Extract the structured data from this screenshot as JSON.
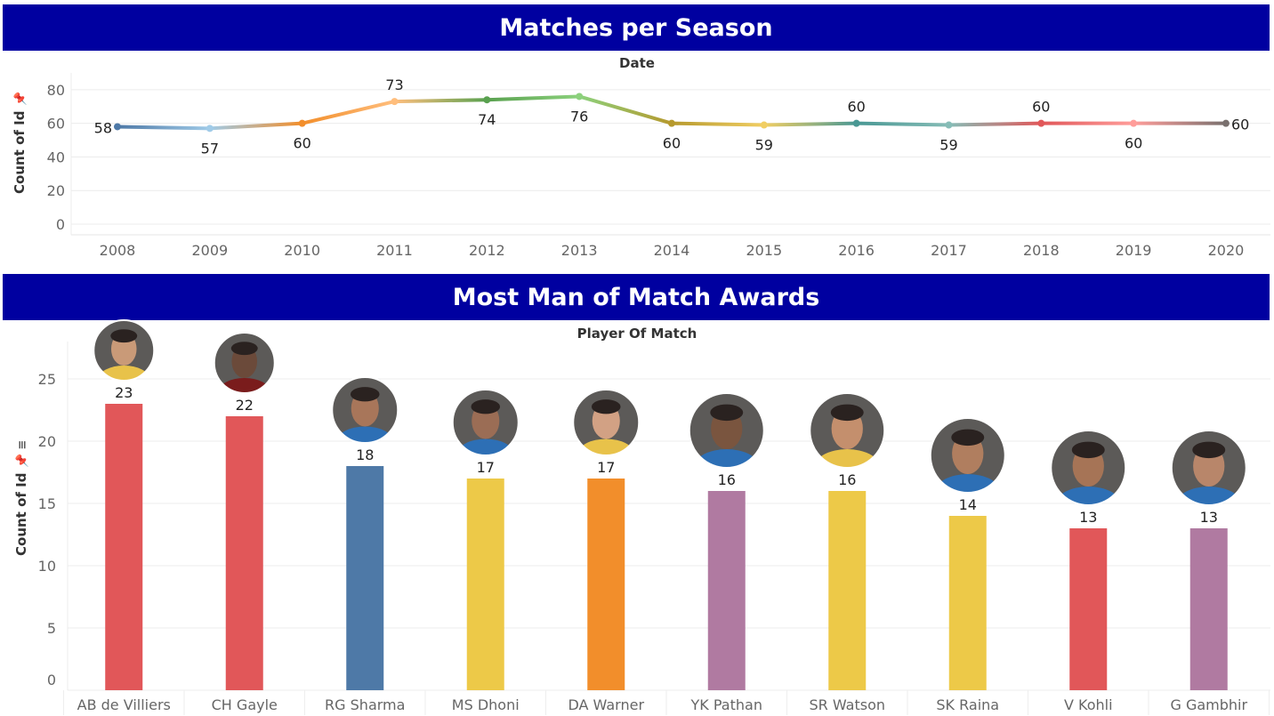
{
  "header_line": {
    "title": "Matches per Season"
  },
  "header_bar": {
    "title": "Most Man of Match Awards"
  },
  "chart_data": [
    {
      "type": "line",
      "title": "Matches per Season",
      "xlabel": "Date",
      "ylabel": "Count of Id",
      "x": [
        "2008",
        "2009",
        "2010",
        "2011",
        "2012",
        "2013",
        "2014",
        "2015",
        "2016",
        "2017",
        "2018",
        "2019",
        "2020"
      ],
      "values": [
        58,
        57,
        60,
        73,
        74,
        76,
        60,
        59,
        60,
        59,
        60,
        60,
        60
      ],
      "ylim": [
        0,
        90
      ],
      "yticks": [
        0,
        20,
        40,
        60,
        80
      ],
      "grid": true,
      "point_colors": [
        "#4e79a7",
        "#a0cbe8",
        "#f28e2b",
        "#ffbe7d",
        "#59a14f",
        "#8cd17d",
        "#b6992d",
        "#f1ce63",
        "#499894",
        "#86bcb6",
        "#e15759",
        "#ff9d9a",
        "#79706e"
      ]
    },
    {
      "type": "bar",
      "title": "Most Man of Match Awards",
      "xlabel": "Player Of Match",
      "ylabel": "Count of Id",
      "categories": [
        "AB de Villiers",
        "CH Gayle",
        "RG Sharma",
        "MS Dhoni",
        "DA Warner",
        "YK Pathan",
        "SR Watson",
        "SK Raina",
        "V Kohli",
        "G Gambhir"
      ],
      "values": [
        23,
        22,
        18,
        17,
        17,
        16,
        16,
        14,
        13,
        13
      ],
      "colors": [
        "#e15759",
        "#e15759",
        "#4e79a7",
        "#edc948",
        "#f28e2b",
        "#b07aa1",
        "#edc948",
        "#edc948",
        "#e15759",
        "#b07aa1"
      ],
      "ylim": [
        0,
        27
      ],
      "yticks": [
        0,
        5,
        10,
        15,
        20,
        25
      ],
      "grid": true
    }
  ]
}
